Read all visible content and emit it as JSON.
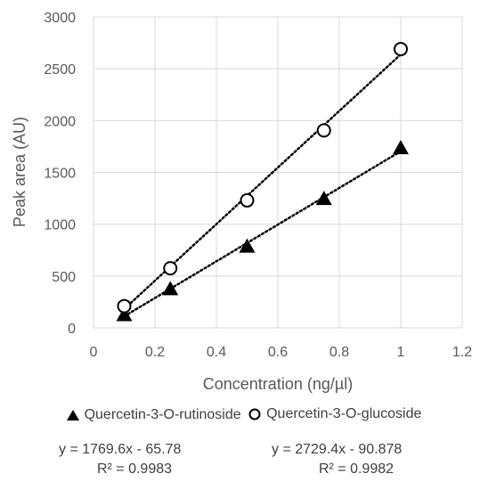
{
  "chart_data": {
    "type": "scatter",
    "xlabel": "Concentration (ng/µl)",
    "ylabel": "Peak area (AU)",
    "xlim": [
      0,
      1.2
    ],
    "ylim": [
      0,
      3000
    ],
    "x_ticks": [
      0,
      0.2,
      0.4,
      0.6,
      0.8,
      1,
      1.2
    ],
    "x_tick_labels": [
      "0",
      "0.2",
      "0.4",
      "0.6",
      "0.8",
      "1",
      "1.2"
    ],
    "y_ticks": [
      0,
      500,
      1000,
      1500,
      2000,
      2500,
      3000
    ],
    "y_tick_labels": [
      "0",
      "500",
      "1000",
      "1500",
      "2000",
      "2500",
      "3000"
    ],
    "grid": true,
    "legend_position": "bottom",
    "series": [
      {
        "name": "Quercetin-3-O-rutinoside",
        "marker": "filled-triangle",
        "color": "#000000",
        "x": [
          0.1,
          0.25,
          0.5,
          0.75,
          1
        ],
        "y": [
          120,
          370,
          780,
          1240,
          1730
        ],
        "trendline": {
          "type": "linear",
          "slope": 1769.6,
          "intercept": -65.78
        },
        "equation": "y = 1769.6x - 65.78",
        "r_squared": "R² = 0.9983"
      },
      {
        "name": "Quercetin-3-O-glucoside",
        "marker": "open-circle",
        "color": "#000000",
        "x": [
          0.1,
          0.25,
          0.5,
          0.75,
          1
        ],
        "y": [
          210,
          575,
          1230,
          1905,
          2690
        ],
        "trendline": {
          "type": "linear",
          "slope": 2729.4,
          "intercept": -90.878
        },
        "equation": "y = 2729.4x - 90.878",
        "r_squared": "R² = 0.9982"
      }
    ]
  }
}
